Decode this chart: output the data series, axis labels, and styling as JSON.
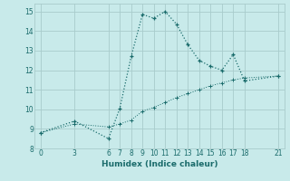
{
  "xlabel": "Humidex (Indice chaleur)",
  "bg_color": "#c8eaea",
  "grid_color": "#a8cccc",
  "line_color": "#1a6b6b",
  "ylim": [
    8,
    15.4
  ],
  "xlim": [
    -0.5,
    21.5
  ],
  "yticks": [
    8,
    9,
    10,
    11,
    12,
    13,
    14,
    15
  ],
  "xticks": [
    0,
    3,
    6,
    7,
    8,
    9,
    10,
    11,
    12,
    13,
    14,
    15,
    16,
    17,
    18,
    21
  ],
  "curve_x": [
    0,
    3,
    6,
    7,
    8,
    9,
    10,
    11,
    12,
    13,
    14,
    15,
    16,
    17,
    18,
    21
  ],
  "curve_y": [
    8.8,
    9.4,
    8.5,
    10.05,
    12.7,
    14.85,
    14.65,
    15.0,
    14.35,
    13.3,
    12.5,
    12.2,
    12.0,
    12.8,
    11.45,
    11.7
  ],
  "trend_x": [
    0,
    3,
    6,
    7,
    8,
    9,
    10,
    11,
    12,
    13,
    14,
    15,
    16,
    17,
    18,
    21
  ],
  "trend_y": [
    8.8,
    9.25,
    9.1,
    9.25,
    9.45,
    9.9,
    10.1,
    10.35,
    10.6,
    10.8,
    11.0,
    11.2,
    11.35,
    11.5,
    11.6,
    11.7
  ]
}
